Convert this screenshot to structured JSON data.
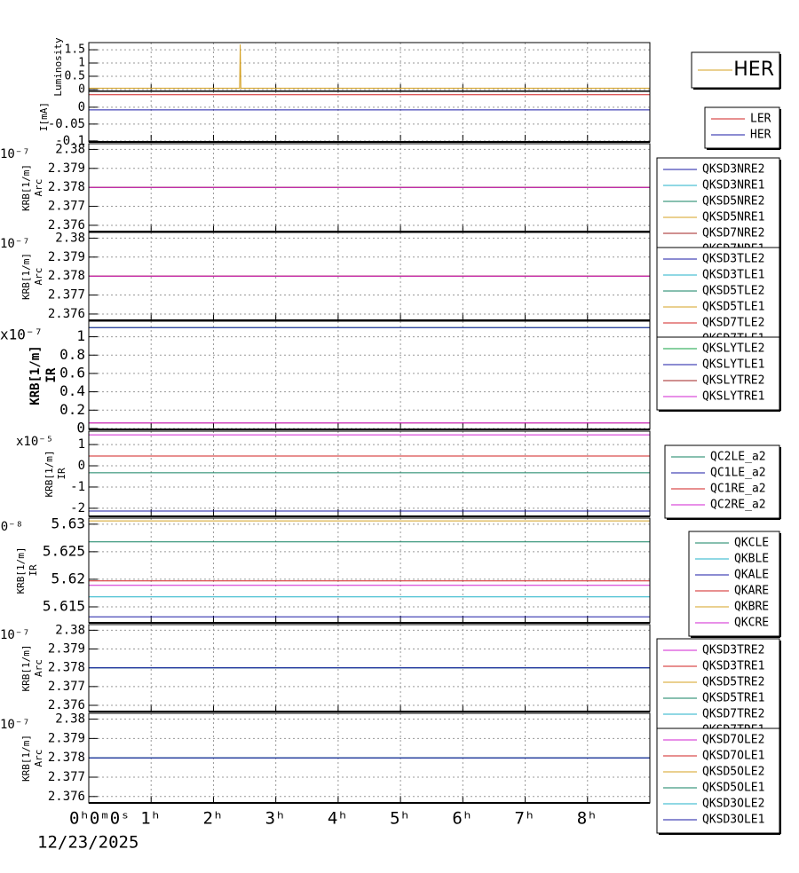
{
  "chart_data": [
    {
      "type": "line",
      "ylabel": [
        "Luminosity"
      ],
      "ylim": [
        -0.07,
        1.77
      ],
      "yticks": [
        0,
        0.5,
        1,
        1.5
      ],
      "series": [
        {
          "name": "HER",
          "color": "#d4a020",
          "x": [
            0,
            2.42,
            2.43,
            2.44,
            9
          ],
          "values": [
            0.05,
            0.05,
            1.7,
            0.05,
            0.05
          ]
        }
      ]
    },
    {
      "type": "line",
      "ylabel": [
        "I[mA]"
      ],
      "ylim": [
        -0.103,
        0.047
      ],
      "yticks": [
        -0.1,
        -0.05,
        0
      ],
      "series": [
        {
          "name": "LER",
          "color": "#d02020",
          "x": [
            0,
            9
          ],
          "values": [
            0.037,
            0.037
          ]
        },
        {
          "name": "HER",
          "color": "#1a1aa6",
          "x": [
            0,
            9
          ],
          "values": [
            -0.008,
            -0.008
          ]
        }
      ]
    },
    {
      "type": "line",
      "ylabel": [
        "KRB[1/m]",
        "Arc"
      ],
      "y_exponent": "10⁻⁷",
      "ylim": [
        2.37567,
        2.3803
      ],
      "yticks": [
        2.376,
        2.377,
        2.378,
        2.379,
        2.38
      ],
      "series": [
        {
          "name": "QKSD3NRE2",
          "color": "#1a1aa6",
          "x": [
            0,
            9
          ],
          "values": [
            2.378,
            2.378
          ]
        },
        {
          "name": "QKSD3NRE1",
          "color": "#20b2c8",
          "x": [
            0,
            9
          ],
          "values": [
            2.378,
            2.378
          ]
        },
        {
          "name": "QKSD5NRE2",
          "color": "#108060",
          "x": [
            0,
            9
          ],
          "values": [
            2.378,
            2.378
          ]
        },
        {
          "name": "QKSD5NRE1",
          "color": "#d4a020",
          "x": [
            0,
            9
          ],
          "values": [
            2.378,
            2.378
          ]
        },
        {
          "name": "QKSD7NRE2",
          "color": "#a02020",
          "x": [
            0,
            9
          ],
          "values": [
            2.378,
            2.378
          ]
        },
        {
          "name": "QKSD7NRE1",
          "color": "#d020d0",
          "x": [
            0,
            9
          ],
          "values": [
            2.378,
            2.378
          ]
        }
      ]
    },
    {
      "type": "line",
      "ylabel": [
        "KRB[1/m]",
        "Arc"
      ],
      "y_exponent": "10⁻⁷",
      "ylim": [
        2.37567,
        2.3803
      ],
      "yticks": [
        2.376,
        2.377,
        2.378,
        2.379,
        2.38
      ],
      "series": [
        {
          "name": "QKSD3TLE2",
          "color": "#1a1aa6",
          "x": [
            0,
            9
          ],
          "values": [
            2.378,
            2.378
          ]
        },
        {
          "name": "QKSD3TLE1",
          "color": "#20b2c8",
          "x": [
            0,
            9
          ],
          "values": [
            2.378,
            2.378
          ]
        },
        {
          "name": "QKSD5TLE2",
          "color": "#108060",
          "x": [
            0,
            9
          ],
          "values": [
            2.378,
            2.378
          ]
        },
        {
          "name": "QKSD5TLE1",
          "color": "#d4a020",
          "x": [
            0,
            9
          ],
          "values": [
            2.378,
            2.378
          ]
        },
        {
          "name": "QKSD7TLE2",
          "color": "#d02020",
          "x": [
            0,
            9
          ],
          "values": [
            2.378,
            2.378
          ]
        },
        {
          "name": "QKSD7TLE1",
          "color": "#d020d0",
          "x": [
            0,
            9
          ],
          "values": [
            2.378,
            2.378
          ]
        }
      ]
    },
    {
      "type": "line",
      "ylabel": [
        "KRB[1/m]",
        "IR"
      ],
      "y_exponent": "x10⁻⁷",
      "ylim": [
        -0.01,
        1.17
      ],
      "yticks": [
        0,
        0.2,
        0.4,
        0.6,
        0.8,
        1
      ],
      "series": [
        {
          "name": "QKSLYTLE2",
          "color": "#10a040",
          "x": [
            0,
            9
          ],
          "values": [
            1.1,
            1.1
          ]
        },
        {
          "name": "QKSLYTLE1",
          "color": "#1a1aa6",
          "x": [
            0,
            9
          ],
          "values": [
            1.1,
            1.1
          ]
        },
        {
          "name": "QKSLYTRE2",
          "color": "#a02020",
          "x": [
            0,
            9
          ],
          "values": [
            0.06,
            0.06
          ]
        },
        {
          "name": "QKSLYTRE1",
          "color": "#d020d0",
          "x": [
            0,
            9
          ],
          "values": [
            0.06,
            0.06
          ]
        }
      ]
    },
    {
      "type": "line",
      "ylabel": [
        "KRB[1/m]",
        "IR"
      ],
      "y_exponent": "x10⁻⁵",
      "ylim": [
        -2.38,
        1.63
      ],
      "yticks": [
        -2,
        -1,
        0,
        1
      ],
      "series": [
        {
          "name": "QC2LE_a2",
          "color": "#108060",
          "x": [
            0,
            9
          ],
          "values": [
            -0.33,
            -0.33
          ]
        },
        {
          "name": "QC1LE_a2",
          "color": "#1a1aa6",
          "x": [
            0,
            9
          ],
          "values": [
            -2.13,
            -2.13
          ]
        },
        {
          "name": "QC1RE_a2",
          "color": "#d02020",
          "x": [
            0,
            9
          ],
          "values": [
            0.46,
            0.46
          ]
        },
        {
          "name": "QC2RE_a2",
          "color": "#d020d0",
          "x": [
            0,
            9
          ],
          "values": [
            1.46,
            1.46
          ]
        }
      ]
    },
    {
      "type": "line",
      "ylabel": [
        "KRB[1/m]",
        "IR"
      ],
      "y_exponent": "10⁻⁸",
      "ylim": [
        5.6121,
        5.6311
      ],
      "yticks": [
        5.615,
        5.62,
        5.625,
        5.63
      ],
      "series": [
        {
          "name": "QKCLE",
          "color": "#108060",
          "x": [
            0,
            9
          ],
          "values": [
            5.6268,
            5.6268
          ]
        },
        {
          "name": "QKBLE",
          "color": "#20b2c8",
          "x": [
            0,
            9
          ],
          "values": [
            5.6168,
            5.6168
          ]
        },
        {
          "name": "QKALE",
          "color": "#1a1aa6",
          "x": [
            0,
            9
          ],
          "values": [
            5.6132,
            5.6132
          ]
        },
        {
          "name": "QKARE",
          "color": "#d02020",
          "x": [
            0,
            9
          ],
          "values": [
            5.6197,
            5.6197
          ]
        },
        {
          "name": "QKBRE",
          "color": "#d4a020",
          "x": [
            0,
            9
          ],
          "values": [
            5.6306,
            5.6306
          ]
        },
        {
          "name": "QKCRE",
          "color": "#d020d0",
          "x": [
            0,
            9
          ],
          "values": [
            5.6189,
            5.6189
          ]
        }
      ]
    },
    {
      "type": "line",
      "ylabel": [
        "KRB[1/m]",
        "Arc"
      ],
      "y_exponent": "10⁻⁷",
      "ylim": [
        2.37567,
        2.3803
      ],
      "yticks": [
        2.376,
        2.377,
        2.378,
        2.379,
        2.38
      ],
      "series": [
        {
          "name": "QKSD3TRE2",
          "color": "#d020d0",
          "x": [
            0,
            9
          ],
          "values": [
            2.378,
            2.378
          ]
        },
        {
          "name": "QKSD3TRE1",
          "color": "#d02020",
          "x": [
            0,
            9
          ],
          "values": [
            2.378,
            2.378
          ]
        },
        {
          "name": "QKSD5TRE2",
          "color": "#d4a020",
          "x": [
            0,
            9
          ],
          "values": [
            2.378,
            2.378
          ]
        },
        {
          "name": "QKSD5TRE1",
          "color": "#108060",
          "x": [
            0,
            9
          ],
          "values": [
            2.378,
            2.378
          ]
        },
        {
          "name": "QKSD7TRE2",
          "color": "#20b2c8",
          "x": [
            0,
            9
          ],
          "values": [
            2.378,
            2.378
          ]
        },
        {
          "name": "QKSD7TRE1",
          "color": "#1a1aa6",
          "x": [
            0,
            9
          ],
          "values": [
            2.378,
            2.378
          ]
        }
      ]
    },
    {
      "type": "line",
      "ylabel": [
        "KRB[1/m]",
        "Arc"
      ],
      "y_exponent": "10⁻⁷",
      "ylim": [
        2.37567,
        2.3803
      ],
      "yticks": [
        2.376,
        2.377,
        2.378,
        2.379,
        2.38
      ],
      "xlim": [
        0,
        9
      ],
      "xticks": [
        {
          "value": 0,
          "label": "0ʰ0ᵐ0ˢ"
        },
        {
          "value": 1,
          "label": "1ʰ"
        },
        {
          "value": 2,
          "label": "2ʰ"
        },
        {
          "value": 3,
          "label": "3ʰ"
        },
        {
          "value": 4,
          "label": "4ʰ"
        },
        {
          "value": 5,
          "label": "5ʰ"
        },
        {
          "value": 6,
          "label": "6ʰ"
        },
        {
          "value": 7,
          "label": "7ʰ"
        },
        {
          "value": 8,
          "label": "8ʰ"
        }
      ],
      "x_date": "12/23/2025",
      "series": [
        {
          "name": "QKSD7OLE2",
          "color": "#d020d0",
          "x": [
            0,
            9
          ],
          "values": [
            2.378,
            2.378
          ]
        },
        {
          "name": "QKSD7OLE1",
          "color": "#d02020",
          "x": [
            0,
            9
          ],
          "values": [
            2.378,
            2.378
          ]
        },
        {
          "name": "QKSD5OLE2",
          "color": "#d4a020",
          "x": [
            0,
            9
          ],
          "values": [
            2.378,
            2.378
          ]
        },
        {
          "name": "QKSD5OLE1",
          "color": "#108060",
          "x": [
            0,
            9
          ],
          "values": [
            2.378,
            2.378
          ]
        },
        {
          "name": "QKSD3OLE2",
          "color": "#20b2c8",
          "x": [
            0,
            9
          ],
          "values": [
            2.378,
            2.378
          ]
        },
        {
          "name": "QKSD3OLE1",
          "color": "#1a1aa6",
          "x": [
            0,
            9
          ],
          "values": [
            2.378,
            2.378
          ]
        }
      ]
    }
  ]
}
